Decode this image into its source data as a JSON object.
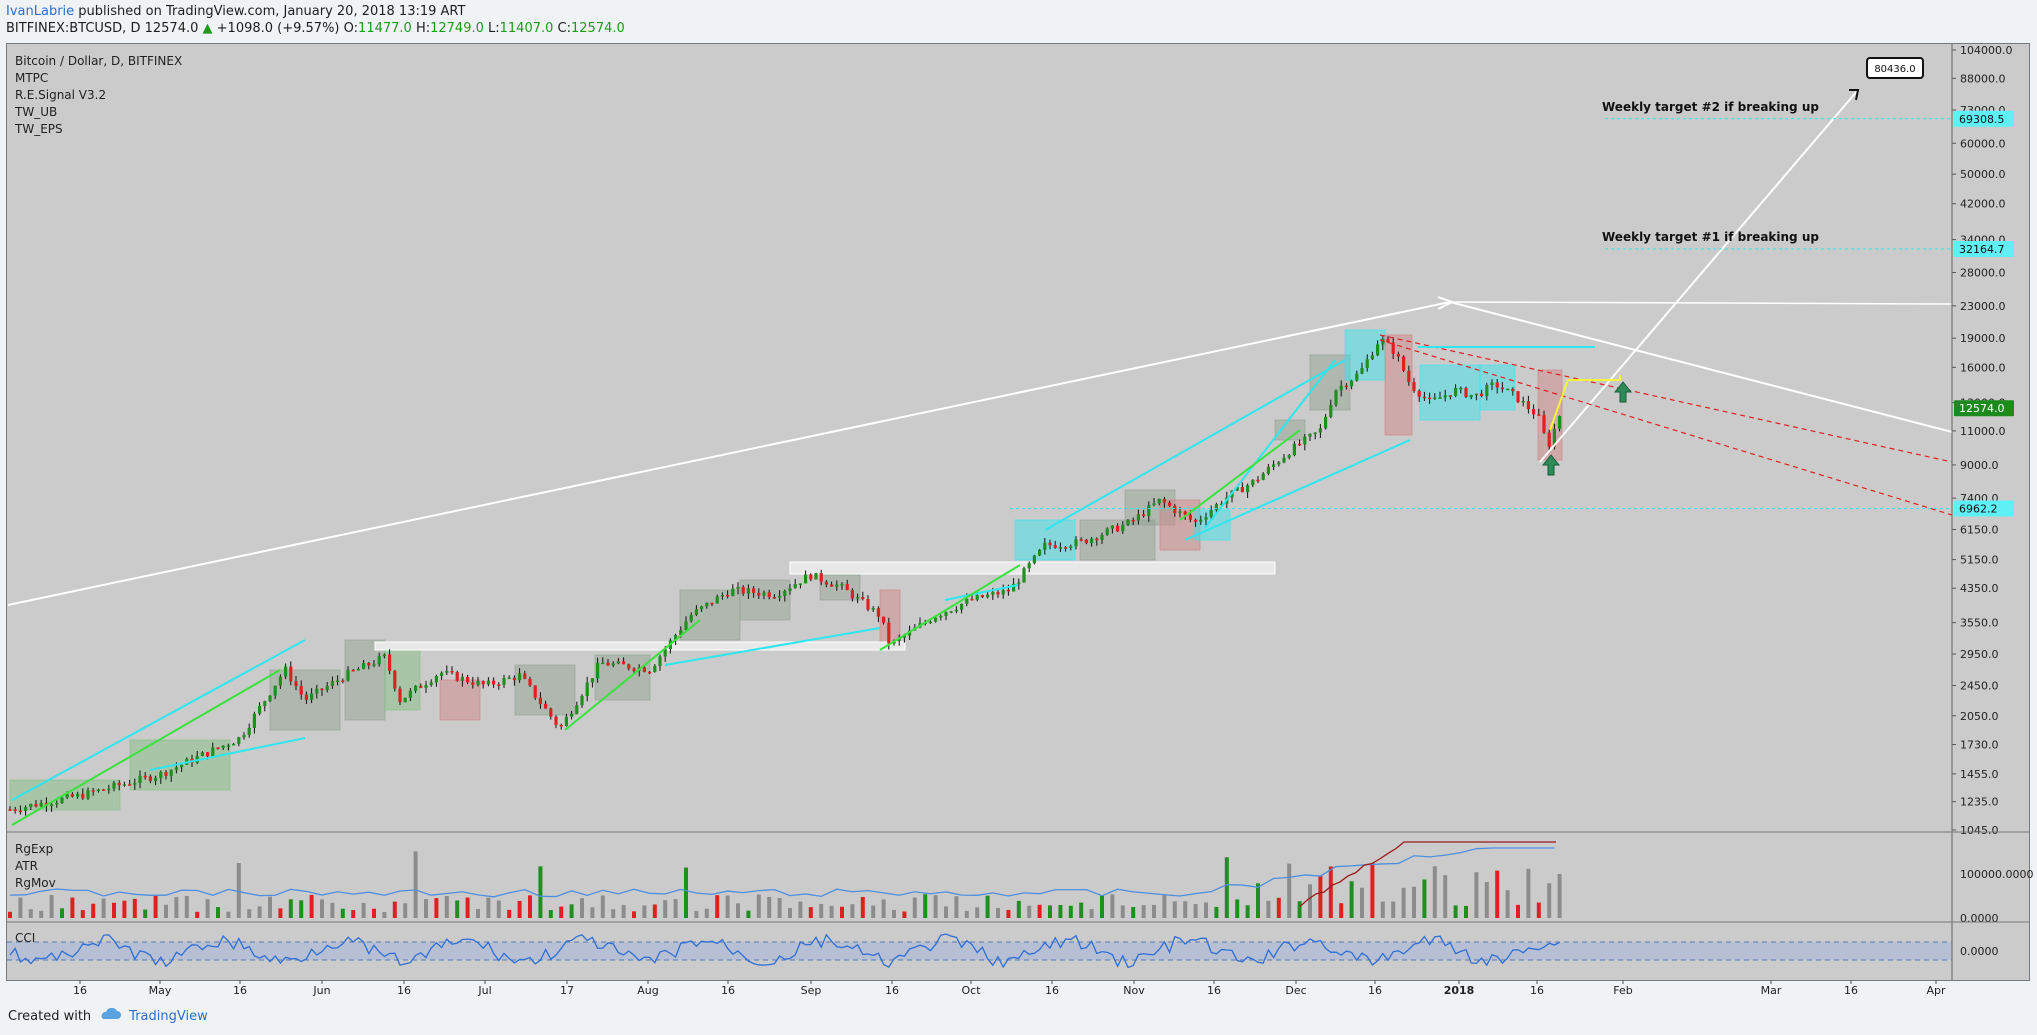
{
  "header": {
    "author": "IvanLabrie",
    "published_text": "published on TradingView.com, January 20, 2018 13:19 ART",
    "symbol": "BITFINEX:BTCUSD, D",
    "last": "12574.0",
    "change": "+1098.0 (+9.57%)",
    "o_label": "O:",
    "o_value": "11477.0",
    "h_label": "H:",
    "h_value": "12749.0",
    "l_label": "L:",
    "l_value": "11407.0",
    "c_label": "C:",
    "c_value": "12574.0"
  },
  "legend": {
    "main": [
      "Bitcoin / Dollar, D, BITFINEX",
      "MTPC",
      "R.E.Signal V3.2",
      "TW_UB",
      "TW_EPS"
    ],
    "pane2": [
      "RgExp",
      "ATR",
      "RgMov"
    ],
    "pane3": [
      "CCI"
    ]
  },
  "footer": {
    "created_with": "Created with",
    "brand": "TradingView"
  },
  "colors": {
    "chart_bg": "#cbcbcb",
    "up": "#1f8f1f",
    "down": "#e02020",
    "cyan": "#2ee6f0",
    "white": "#ffffff",
    "price_badge": "#1c8a1c"
  },
  "chart_data": {
    "type": "candlestick",
    "title": "Bitcoin / Dollar, D, BITFINEX",
    "y_scale": "log",
    "y_ticks": [
      "104000.0",
      "88000.0",
      "73000.0",
      "60000.0",
      "50000.0",
      "42000.0",
      "34000.0",
      "28000.0",
      "23000.0",
      "19000.0",
      "16000.0",
      "13000.0",
      "11000.0",
      "9000.0",
      "7400.0",
      "6150.0",
      "5150.0",
      "4350.0",
      "3550.0",
      "2950.0",
      "2450.0",
      "2050.0",
      "1730.0",
      "1455.0",
      "1235.0",
      "1045.0"
    ],
    "x_ticks": [
      "16",
      "May",
      "16",
      "Jun",
      "16",
      "Jul",
      "17",
      "Aug",
      "16",
      "Sep",
      "16",
      "Oct",
      "16",
      "Nov",
      "16",
      "Dec",
      "16",
      "2018",
      "16",
      "Feb",
      "Mar",
      "16",
      "Apr"
    ],
    "price_labels": [
      {
        "text": "69308.5",
        "value": 69308.5
      },
      {
        "text": "32164.7",
        "value": 32164.7
      },
      {
        "text": "12574.0",
        "value": 12574.0
      },
      {
        "text": "6962.2",
        "value": 6962.2
      }
    ],
    "callout": {
      "text": "80436.0",
      "value": 80436.0
    },
    "annotations": [
      {
        "text": "Weekly target #2 if breaking up",
        "value": 69308.5
      },
      {
        "text": "Weekly target #1 if breaking up",
        "value": 32164.7
      }
    ],
    "last_ohlc": {
      "open": 11477.0,
      "high": 12749.0,
      "low": 11407.0,
      "close": 12574.0
    },
    "pane2_ticks": [
      "100000.0000",
      "0.0000"
    ],
    "pane3_ticks": [
      "0.0000"
    ]
  }
}
